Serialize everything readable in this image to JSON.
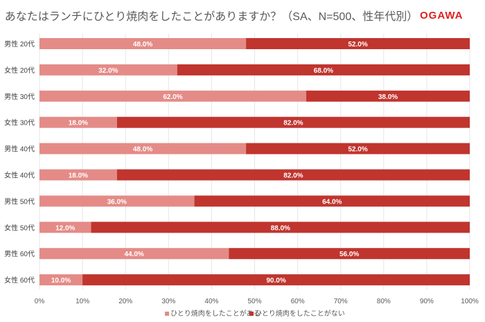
{
  "title": "あなたはランチにひとり焼肉をしたことがありますか？（SA、N=500、性年代別）",
  "logo": "OGAWA",
  "chart_data": {
    "type": "bar",
    "stacked": true,
    "orientation": "horizontal",
    "categories": [
      "男性 20代",
      "女性 20代",
      "男性 30代",
      "女性 30代",
      "男性 40代",
      "女性 40代",
      "男性 50代",
      "女性 50代",
      "男性 60代",
      "女性 60代"
    ],
    "series": [
      {
        "name": "ひとり焼肉をしたことがある",
        "color": "#e48b87",
        "values": [
          48,
          32,
          62,
          18,
          48,
          18,
          36,
          12,
          44,
          10
        ]
      },
      {
        "name": "ひとり焼肉をしたことがない",
        "color": "#c0352e",
        "values": [
          52,
          68,
          38,
          82,
          52,
          82,
          64,
          88,
          56,
          90
        ]
      }
    ],
    "xticks": [
      "0%",
      "10%",
      "20%",
      "30%",
      "40%",
      "50%",
      "60%",
      "70%",
      "80%",
      "90%",
      "100%"
    ],
    "xlim": [
      0,
      100
    ],
    "grid": true,
    "legend": "bottom"
  }
}
